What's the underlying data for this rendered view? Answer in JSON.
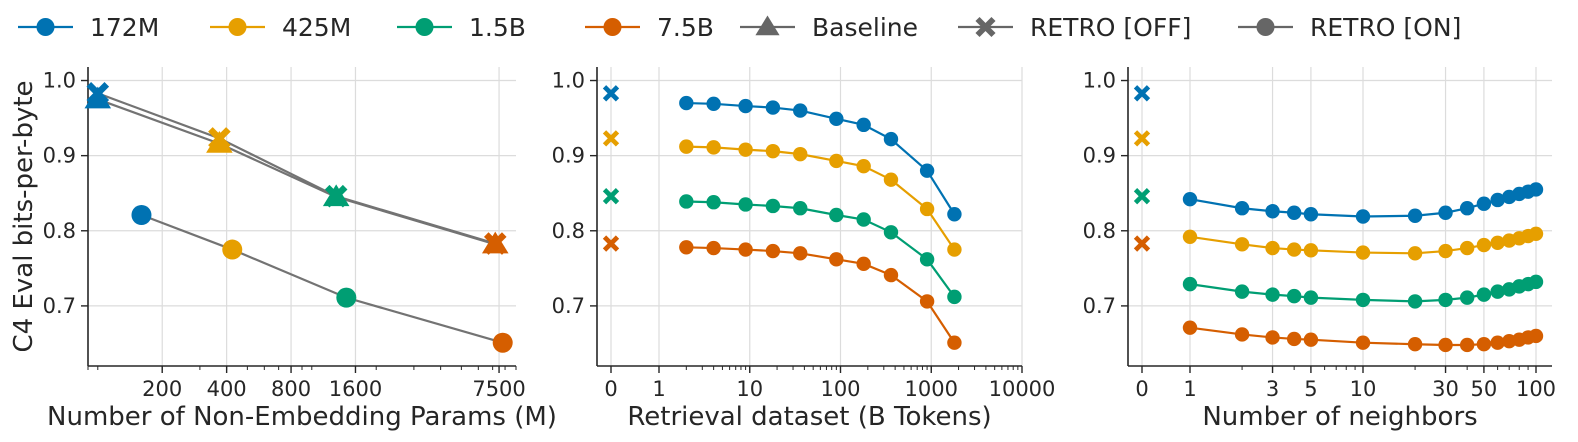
{
  "legend": {
    "items": [
      {
        "label": "172M",
        "marker": "circle",
        "color": "#0072B2"
      },
      {
        "label": "425M",
        "marker": "circle",
        "color": "#E69F00"
      },
      {
        "label": "1.5B",
        "marker": "circle",
        "color": "#009E73"
      },
      {
        "label": "7.5B",
        "marker": "circle",
        "color": "#D55E00"
      },
      {
        "label": "Baseline",
        "marker": "triangle",
        "color": "#666666"
      },
      {
        "label": "RETRO [OFF]",
        "marker": "x",
        "color": "#666666"
      },
      {
        "label": "RETRO [ON]",
        "marker": "circle",
        "color": "#666666"
      }
    ]
  },
  "chart_data": [
    {
      "type": "scatter",
      "xlabel": "Number of Non-Embedding Params (M)",
      "ylabel": "C4 Eval bits-per-byte",
      "xscale": "log",
      "xticks": [
        200,
        400,
        800,
        1600,
        7500
      ],
      "xticklabels": [
        "200",
        "400",
        "800",
        "1600",
        "7500"
      ],
      "xlim": [
        90,
        9000
      ],
      "yticks": [
        0.7,
        0.8,
        0.9,
        1.0
      ],
      "yticklabels": [
        "0.7",
        "0.8",
        "0.9",
        "1.0"
      ],
      "ylim": [
        0.62,
        1.018
      ],
      "grid": true,
      "series": [
        {
          "name": "172M",
          "color": "#0072B2",
          "points": [
            {
              "x": 100,
              "y": 0.975,
              "marker": "triangle"
            },
            {
              "x": 100,
              "y": 0.983,
              "marker": "x"
            },
            {
              "x": 160,
              "y": 0.821,
              "marker": "circle"
            }
          ]
        },
        {
          "name": "425M",
          "color": "#E69F00",
          "points": [
            {
              "x": 370,
              "y": 0.916,
              "marker": "triangle"
            },
            {
              "x": 370,
              "y": 0.923,
              "marker": "x"
            },
            {
              "x": 425,
              "y": 0.775,
              "marker": "circle"
            }
          ]
        },
        {
          "name": "1.5B",
          "color": "#009E73",
          "points": [
            {
              "x": 1300,
              "y": 0.845,
              "marker": "triangle"
            },
            {
              "x": 1300,
              "y": 0.846,
              "marker": "x"
            },
            {
              "x": 1450,
              "y": 0.711,
              "marker": "circle"
            }
          ]
        },
        {
          "name": "7.5B",
          "color": "#D55E00",
          "points": [
            {
              "x": 7200,
              "y": 0.782,
              "marker": "triangle"
            },
            {
              "x": 7200,
              "y": 0.783,
              "marker": "x"
            },
            {
              "x": 7800,
              "y": 0.651,
              "marker": "circle"
            }
          ]
        }
      ],
      "lines": [
        {
          "name": "Baseline",
          "color": "#666666",
          "x": [
            100,
            370,
            1300,
            7200
          ],
          "y": [
            0.975,
            0.916,
            0.845,
            0.782
          ]
        },
        {
          "name": "RETRO [OFF]",
          "color": "#666666",
          "x": [
            100,
            370,
            1300,
            7200
          ],
          "y": [
            0.983,
            0.923,
            0.846,
            0.783
          ]
        },
        {
          "name": "RETRO [ON]",
          "color": "#666666",
          "x": [
            160,
            425,
            1450,
            7800
          ],
          "y": [
            0.821,
            0.775,
            0.711,
            0.651
          ]
        }
      ]
    },
    {
      "type": "line",
      "xlabel": "Retrieval dataset (B Tokens)",
      "xscale": "symlog",
      "xticks": [
        0,
        1,
        10,
        100,
        1000,
        10000
      ],
      "xticklabels": [
        "0",
        "1",
        "10",
        "100",
        "1000",
        "10000"
      ],
      "xlim": [
        0,
        10000
      ],
      "yticks": [
        0.7,
        0.8,
        0.9,
        1.0
      ],
      "yticklabels": [
        "0.7",
        "0.8",
        "0.9",
        "1.0"
      ],
      "ylim": [
        0.62,
        1.018
      ],
      "grid": true,
      "retro_off": [
        {
          "name": "172M",
          "x": 0,
          "y": 0.983
        },
        {
          "name": "425M",
          "x": 0,
          "y": 0.923
        },
        {
          "name": "1.5B",
          "x": 0,
          "y": 0.846
        },
        {
          "name": "7.5B",
          "x": 0,
          "y": 0.783
        }
      ],
      "x": [
        2,
        4,
        9,
        18,
        36,
        90,
        180,
        360,
        900,
        1800
      ],
      "series": [
        {
          "name": "172M",
          "color": "#0072B2",
          "values": [
            0.97,
            0.969,
            0.966,
            0.964,
            0.96,
            0.949,
            0.941,
            0.922,
            0.88,
            0.822
          ]
        },
        {
          "name": "425M",
          "color": "#E69F00",
          "values": [
            0.912,
            0.911,
            0.908,
            0.906,
            0.902,
            0.893,
            0.886,
            0.868,
            0.829,
            0.775
          ]
        },
        {
          "name": "1.5B",
          "color": "#009E73",
          "values": [
            0.839,
            0.838,
            0.835,
            0.833,
            0.83,
            0.821,
            0.815,
            0.798,
            0.762,
            0.712
          ]
        },
        {
          "name": "7.5B",
          "color": "#D55E00",
          "values": [
            0.778,
            0.777,
            0.775,
            0.773,
            0.77,
            0.762,
            0.756,
            0.741,
            0.706,
            0.651
          ]
        }
      ]
    },
    {
      "type": "line",
      "xlabel": "Number of neighbors",
      "xscale": "symlog",
      "xticks": [
        0,
        1,
        3,
        5,
        10,
        30,
        50,
        100
      ],
      "xticklabels": [
        "0",
        "1",
        "3",
        "5",
        "10",
        "30",
        "50",
        "100"
      ],
      "xlim": [
        0,
        100
      ],
      "yticks": [
        0.7,
        0.8,
        0.9,
        1.0
      ],
      "yticklabels": [
        "0.7",
        "0.8",
        "0.9",
        "1.0"
      ],
      "ylim": [
        0.62,
        1.018
      ],
      "grid": true,
      "retro_off": [
        {
          "name": "172M",
          "x": 0,
          "y": 0.983
        },
        {
          "name": "425M",
          "x": 0,
          "y": 0.923
        },
        {
          "name": "1.5B",
          "x": 0,
          "y": 0.846
        },
        {
          "name": "7.5B",
          "x": 0,
          "y": 0.783
        }
      ],
      "x": [
        1,
        2,
        3,
        4,
        5,
        10,
        20,
        30,
        40,
        50,
        60,
        70,
        80,
        90,
        100
      ],
      "series": [
        {
          "name": "172M",
          "color": "#0072B2",
          "values": [
            0.842,
            0.83,
            0.826,
            0.824,
            0.822,
            0.819,
            0.82,
            0.824,
            0.83,
            0.836,
            0.841,
            0.845,
            0.849,
            0.852,
            0.855
          ]
        },
        {
          "name": "425M",
          "color": "#E69F00",
          "values": [
            0.792,
            0.782,
            0.777,
            0.775,
            0.774,
            0.771,
            0.77,
            0.773,
            0.777,
            0.781,
            0.784,
            0.787,
            0.79,
            0.793,
            0.796
          ]
        },
        {
          "name": "1.5B",
          "color": "#009E73",
          "values": [
            0.729,
            0.719,
            0.715,
            0.713,
            0.711,
            0.708,
            0.706,
            0.708,
            0.711,
            0.715,
            0.719,
            0.722,
            0.726,
            0.729,
            0.732
          ]
        },
        {
          "name": "7.5B",
          "color": "#D55E00",
          "values": [
            0.671,
            0.662,
            0.658,
            0.656,
            0.655,
            0.651,
            0.649,
            0.648,
            0.648,
            0.649,
            0.651,
            0.653,
            0.655,
            0.658,
            0.66
          ]
        }
      ]
    }
  ]
}
